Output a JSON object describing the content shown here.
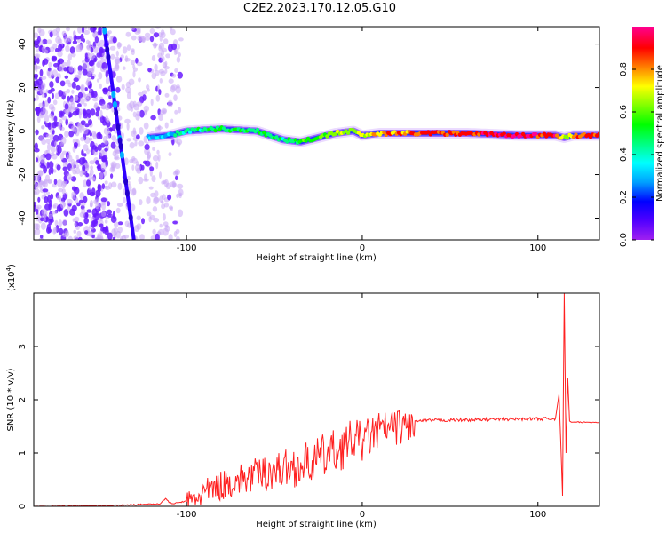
{
  "title": "C2E2.2023.170.12.05.G10",
  "chart_data": [
    {
      "type": "heatmap",
      "xlabel": "Height of straight line (km)",
      "ylabel": "Frequency (Hz)",
      "xlim": [
        -187,
        135
      ],
      "ylim": [
        -50,
        48
      ],
      "xticks": [
        -100,
        0,
        100
      ],
      "xtick_labels": [
        "-100",
        "0",
        "100"
      ],
      "yticks": [
        -40,
        -20,
        0,
        20,
        40
      ],
      "ytick_labels": [
        "-40",
        "-20",
        "0",
        "20",
        "40"
      ],
      "colorbar": {
        "label": "Normalized spectral amplitude",
        "range": [
          0,
          1
        ],
        "ticks": [
          0.0,
          0.2,
          0.4,
          0.6,
          0.8
        ],
        "tick_labels": [
          "0.0",
          "0.2",
          "0.4",
          "0.6",
          "0.8"
        ],
        "colors": [
          "#a020f0",
          "#5000ff",
          "#0000ff",
          "#00a0ff",
          "#00ffff",
          "#00ff80",
          "#00ff00",
          "#80ff00",
          "#ffff00",
          "#ff8000",
          "#ff0000",
          "#ff0090"
        ]
      },
      "noise_region_x": [
        -187,
        -103
      ],
      "diagonal_line": {
        "x": [
          -147,
          -130
        ],
        "y": [
          48,
          -50
        ]
      },
      "ridge": {
        "x": [
          -122,
          -110,
          -100,
          -80,
          -60,
          -45,
          -35,
          -25,
          -15,
          -5,
          0,
          10,
          30,
          60,
          90,
          110,
          115,
          120,
          135
        ],
        "y": [
          -3,
          -2,
          0,
          1,
          0,
          -4,
          -5,
          -3,
          -1,
          0,
          -2,
          -1,
          -1,
          -1,
          -2,
          -2,
          -3,
          -2,
          -2
        ],
        "amplitude": [
          0.3,
          0.35,
          0.45,
          0.5,
          0.5,
          0.45,
          0.55,
          0.6,
          0.65,
          0.7,
          0.72,
          0.78,
          0.85,
          0.9,
          0.95,
          0.9,
          0.6,
          0.8,
          0.95
        ]
      }
    },
    {
      "type": "line",
      "xlabel": "Height of straight line (km)",
      "ylabel": "SNR (10 * v/v)",
      "multiplier_label": "(x10",
      "multiplier_exp": "4",
      "xlim": [
        -187,
        135
      ],
      "ylim": [
        0,
        4
      ],
      "xticks": [
        -100,
        0,
        100
      ],
      "xtick_labels": [
        "-100",
        "0",
        "100"
      ],
      "yticks": [
        0,
        1,
        2,
        3
      ],
      "ytick_labels": [
        "0",
        "1",
        "2",
        "3"
      ],
      "line_color": "#ff2020",
      "series": [
        {
          "x": [
            -187,
            -140,
            -115,
            -112,
            -110,
            -108,
            -100,
            -90,
            -80,
            -70,
            -60,
            -50,
            -40,
            -30,
            -20,
            -10,
            -5,
            0,
            5,
            10,
            20,
            30,
            40,
            60,
            80,
            100,
            110,
            112,
            113,
            114,
            115,
            116,
            117,
            118,
            119,
            120,
            125,
            135
          ],
          "y": [
            0.0,
            0.02,
            0.05,
            0.15,
            0.08,
            0.05,
            0.1,
            0.3,
            0.45,
            0.55,
            0.65,
            0.75,
            0.8,
            0.9,
            1.05,
            1.2,
            1.35,
            1.3,
            1.4,
            1.5,
            1.55,
            1.6,
            1.62,
            1.63,
            1.64,
            1.65,
            1.65,
            2.1,
            1.2,
            0.2,
            4.0,
            1.0,
            2.4,
            1.6,
            1.58,
            1.58,
            1.58,
            1.58
          ]
        }
      ]
    }
  ]
}
